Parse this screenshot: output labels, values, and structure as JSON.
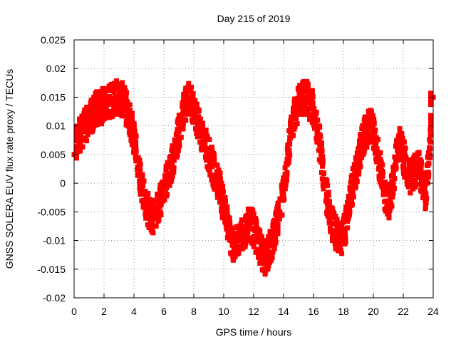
{
  "chart_data": {
    "type": "scatter",
    "title": "Day 215 of 2019",
    "xlabel": "GPS time / hours",
    "ylabel": "GNSS SOLERA EUV flux rate proxy / TECUs",
    "xlim": [
      0,
      24
    ],
    "ylim": [
      -0.02,
      0.025
    ],
    "x_ticks": [
      0,
      2,
      4,
      6,
      8,
      10,
      12,
      14,
      16,
      18,
      20,
      22,
      24
    ],
    "y_ticks": [
      -0.02,
      -0.015,
      -0.01,
      -0.005,
      0,
      0.005,
      0.01,
      0.015,
      0.02,
      0.025
    ],
    "x_tick_labels": [
      "0",
      "2",
      "4",
      "6",
      "8",
      "10",
      "12",
      "14",
      "16",
      "18",
      "20",
      "22",
      "24"
    ],
    "y_tick_labels": [
      "-0.02",
      "-0.015",
      "-0.01",
      "-0.005",
      "0",
      "0.005",
      "0.01",
      "0.015",
      "0.02",
      "0.025"
    ],
    "grid": true,
    "marker": "square",
    "color": "#ff0000",
    "series": [
      {
        "x": [
          0.0,
          0.25,
          0.5,
          0.75,
          1.0,
          1.25,
          1.5,
          1.75,
          2.0,
          2.25,
          2.5,
          2.75,
          3.0,
          3.25,
          3.5,
          3.75,
          4.0,
          4.25,
          4.5,
          4.75,
          5.0,
          5.25,
          5.5,
          5.75,
          6.0,
          6.25,
          6.5,
          6.75,
          7.0,
          7.25,
          7.5,
          7.75,
          8.0,
          8.25,
          8.5,
          8.75,
          9.0,
          9.25,
          9.5,
          9.75,
          10.0,
          10.25,
          10.5,
          10.75,
          11.0,
          11.25,
          11.5,
          11.75,
          12.0,
          12.25,
          12.5,
          12.75,
          13.0,
          13.25,
          13.5,
          13.75,
          14.0,
          14.25,
          14.5,
          14.75,
          15.0,
          15.25,
          15.5,
          15.75,
          16.0,
          16.25,
          16.5,
          16.75,
          17.0,
          17.25,
          17.5,
          17.75,
          18.0,
          18.25,
          18.5,
          18.75,
          19.0,
          19.25,
          19.5,
          19.75,
          20.0,
          20.25,
          20.5,
          20.75,
          21.0,
          21.25,
          21.5,
          21.75,
          22.0,
          22.25,
          22.5,
          22.75,
          23.0,
          23.25,
          23.5,
          23.75,
          24.0
        ],
        "y": [
          0.005,
          0.008,
          0.009,
          0.01,
          0.011,
          0.012,
          0.013,
          0.013,
          0.014,
          0.014,
          0.0145,
          0.015,
          0.015,
          0.0145,
          0.013,
          0.011,
          0.008,
          0.004,
          0.0,
          -0.003,
          -0.005,
          -0.006,
          -0.005,
          -0.003,
          -0.001,
          0.001,
          0.003,
          0.006,
          0.009,
          0.012,
          0.014,
          0.015,
          0.013,
          0.011,
          0.009,
          0.007,
          0.005,
          0.003,
          0.001,
          -0.001,
          -0.004,
          -0.007,
          -0.01,
          -0.011,
          -0.01,
          -0.009,
          -0.008,
          -0.007,
          -0.008,
          -0.01,
          -0.012,
          -0.013,
          -0.012,
          -0.01,
          -0.008,
          -0.005,
          -0.001,
          0.004,
          0.009,
          0.012,
          0.014,
          0.015,
          0.015,
          0.014,
          0.013,
          0.01,
          0.005,
          0.0,
          -0.004,
          -0.007,
          -0.009,
          -0.01,
          -0.009,
          -0.006,
          -0.002,
          0.001,
          0.004,
          0.007,
          0.009,
          0.01,
          0.009,
          0.006,
          0.002,
          -0.002,
          -0.004,
          -0.001,
          0.004,
          0.008,
          0.005,
          0.002,
          0.001,
          0.002,
          0.003,
          0.001,
          -0.002,
          0.005,
          0.015
        ]
      }
    ]
  }
}
